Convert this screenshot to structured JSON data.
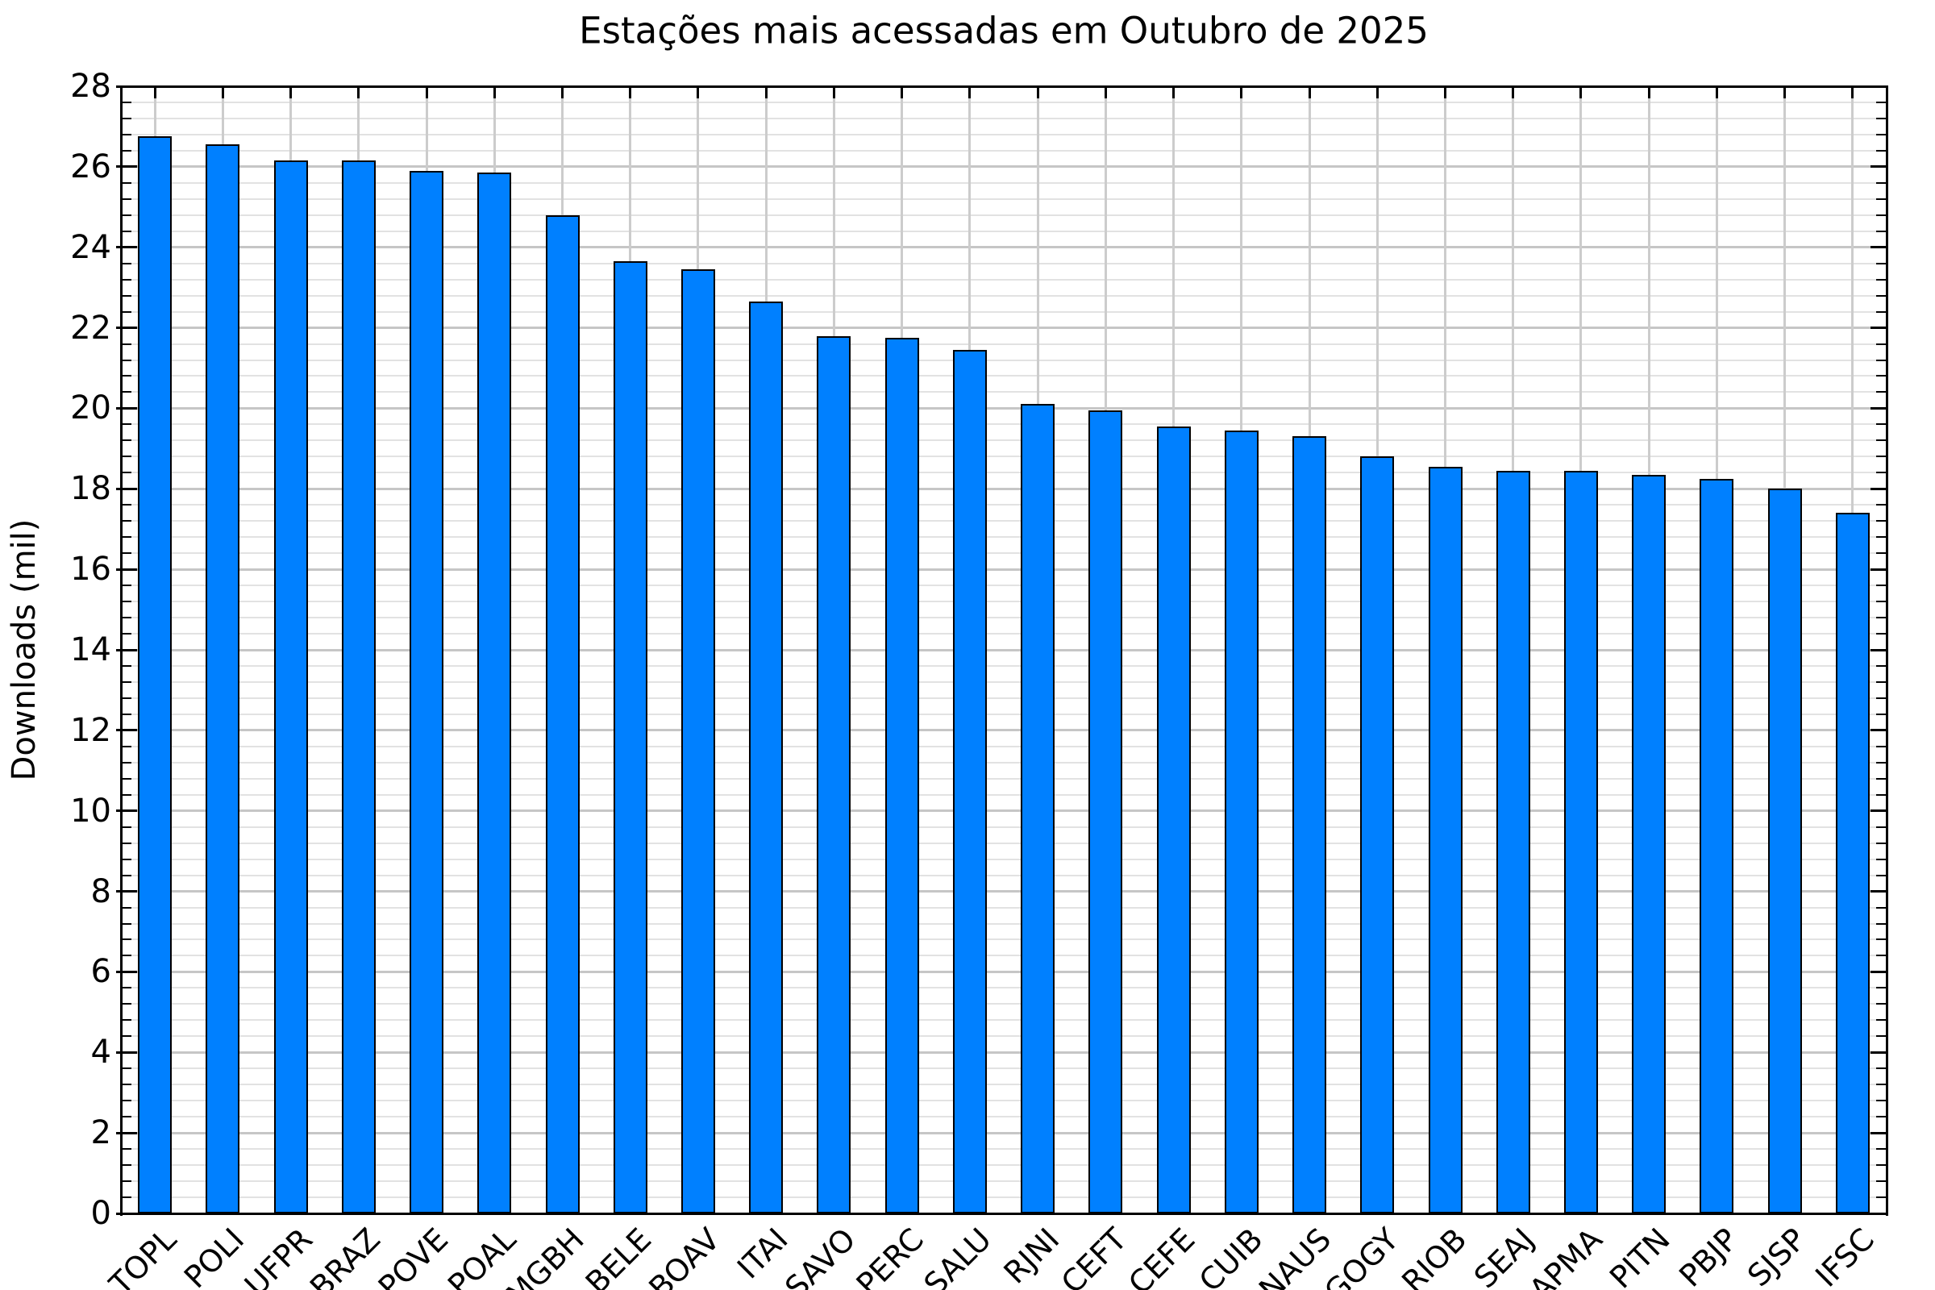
{
  "chart_data": {
    "type": "bar",
    "title": "Estações mais acessadas em Outubro de 2025",
    "xlabel": "",
    "ylabel": "Downloads (mil)",
    "categories": [
      "TOPL",
      "POLI",
      "UFPR",
      "BRAZ",
      "POVE",
      "POAL",
      "MGBH",
      "BELE",
      "BOAV",
      "ITAI",
      "SAVO",
      "PERC",
      "SALU",
      "RJNI",
      "CEFT",
      "CEFE",
      "CUIB",
      "NAUS",
      "GOGY",
      "RIOB",
      "SEAJ",
      "APMA",
      "PITN",
      "PBJP",
      "SJSP",
      "IFSC"
    ],
    "values": [
      26.75,
      26.55,
      26.15,
      26.15,
      25.9,
      25.85,
      24.8,
      23.65,
      23.45,
      22.65,
      21.8,
      21.75,
      21.45,
      20.1,
      19.95,
      19.55,
      19.45,
      19.3,
      18.8,
      18.55,
      18.45,
      18.45,
      18.35,
      18.25,
      18.0,
      17.4
    ],
    "ylim": [
      0,
      28
    ],
    "yticks": [
      0,
      2,
      4,
      6,
      8,
      10,
      12,
      14,
      16,
      18,
      20,
      22,
      24,
      26,
      28
    ],
    "minor_tick_step": 0.4,
    "grid": "major+minor, horizontal minors, vertical line at each category",
    "legend": "none",
    "bar_color": "#0080ff",
    "bar_edge_color": "#000000",
    "major_grid_color": "#c6c6c6",
    "minor_grid_color": "#e2e2e2",
    "axis_color": "#000000",
    "background_color": "#ffffff"
  }
}
